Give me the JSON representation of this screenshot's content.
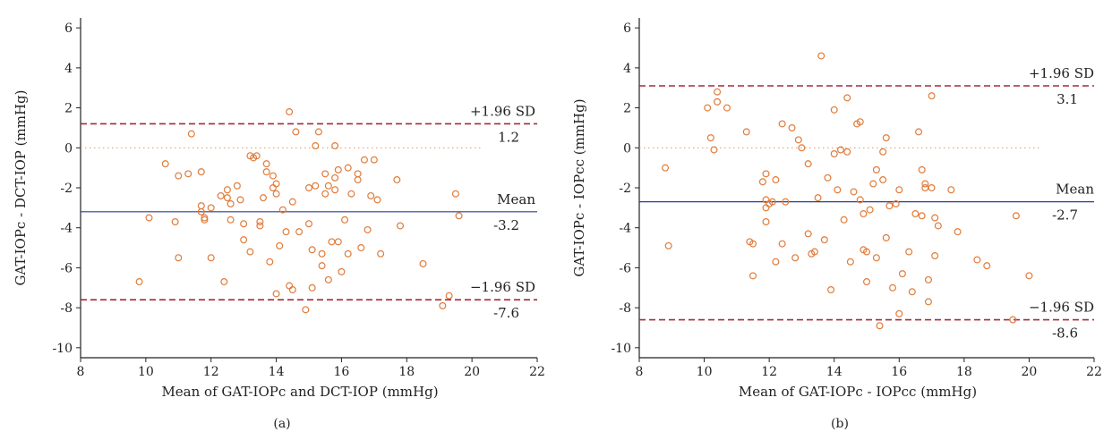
{
  "colors": {
    "points": "#e07b39",
    "mean_line": "#2a3d9c",
    "sd_lines": "#a52a3a",
    "zero_line": "#e8a070",
    "axis": "#222222"
  },
  "chart_data": [
    {
      "type": "scatter",
      "panel_label": "(a)",
      "xlabel": "Mean of GAT-IOPc and DCT-IOP (mmHg)",
      "ylabel": "GAT-IOPc - DCT-IOP (mmHg)",
      "xlim": [
        8,
        22
      ],
      "ylim": [
        -10.5,
        6.5
      ],
      "xticks": [
        8,
        10,
        12,
        14,
        16,
        18,
        20,
        22
      ],
      "yticks": [
        -10,
        -8,
        -6,
        -4,
        -2,
        0,
        2,
        4,
        6
      ],
      "grid": false,
      "zero_line": 0,
      "reference_lines": [
        {
          "name": "upper",
          "value": 1.2,
          "label": "+1.96 SD",
          "value_label": "1.2"
        },
        {
          "name": "mean",
          "value": -3.2,
          "label": "Mean",
          "value_label": "-3.2"
        },
        {
          "name": "lower",
          "value": -7.6,
          "label": "−1.96 SD",
          "value_label": "-7.6"
        }
      ],
      "points": [
        [
          9.8,
          -6.7
        ],
        [
          10.1,
          -3.5
        ],
        [
          10.6,
          -0.8
        ],
        [
          10.9,
          -3.7
        ],
        [
          11.0,
          -1.4
        ],
        [
          11.0,
          -5.5
        ],
        [
          11.3,
          -1.3
        ],
        [
          11.4,
          0.7
        ],
        [
          11.7,
          -1.2
        ],
        [
          11.7,
          -2.9
        ],
        [
          11.7,
          -3.2
        ],
        [
          11.8,
          -3.5
        ],
        [
          11.8,
          -3.6
        ],
        [
          12.0,
          -5.5
        ],
        [
          12.0,
          -3.0
        ],
        [
          12.3,
          -2.4
        ],
        [
          12.4,
          -6.7
        ],
        [
          12.5,
          -2.1
        ],
        [
          12.5,
          -2.5
        ],
        [
          12.6,
          -3.6
        ],
        [
          12.8,
          -1.9
        ],
        [
          12.9,
          -2.6
        ],
        [
          13.0,
          -4.6
        ],
        [
          13.0,
          -3.8
        ],
        [
          13.2,
          -5.2
        ],
        [
          13.2,
          -0.4
        ],
        [
          13.3,
          -0.5
        ],
        [
          13.4,
          -0.4
        ],
        [
          13.5,
          -3.7
        ],
        [
          13.5,
          -3.9
        ],
        [
          13.6,
          -2.5
        ],
        [
          13.7,
          -0.8
        ],
        [
          13.7,
          -1.2
        ],
        [
          13.8,
          -5.7
        ],
        [
          13.9,
          -2.0
        ],
        [
          13.9,
          -1.4
        ],
        [
          14.0,
          -2.3
        ],
        [
          14.0,
          -1.8
        ],
        [
          14.0,
          -7.3
        ],
        [
          14.1,
          -4.9
        ],
        [
          14.2,
          -3.1
        ],
        [
          14.3,
          -4.2
        ],
        [
          14.4,
          1.8
        ],
        [
          14.4,
          -6.9
        ],
        [
          14.5,
          -7.1
        ],
        [
          14.5,
          -2.7
        ],
        [
          14.6,
          0.8
        ],
        [
          14.7,
          -4.2
        ],
        [
          14.9,
          -8.1
        ],
        [
          15.0,
          -3.8
        ],
        [
          15.0,
          -2.0
        ],
        [
          15.1,
          -7.0
        ],
        [
          15.1,
          -5.1
        ],
        [
          15.2,
          0.1
        ],
        [
          15.2,
          -1.9
        ],
        [
          15.3,
          0.8
        ],
        [
          15.4,
          -5.3
        ],
        [
          15.4,
          -5.9
        ],
        [
          15.5,
          -1.3
        ],
        [
          15.5,
          -2.3
        ],
        [
          15.6,
          -1.9
        ],
        [
          15.6,
          -6.6
        ],
        [
          15.7,
          -4.7
        ],
        [
          15.8,
          0.1
        ],
        [
          15.8,
          -1.5
        ],
        [
          15.8,
          -2.1
        ],
        [
          15.9,
          -1.1
        ],
        [
          15.9,
          -4.7
        ],
        [
          16.0,
          -6.2
        ],
        [
          16.1,
          -3.6
        ],
        [
          16.2,
          -5.3
        ],
        [
          16.2,
          -1.0
        ],
        [
          16.3,
          -2.3
        ],
        [
          16.5,
          -1.3
        ],
        [
          16.5,
          -1.6
        ],
        [
          16.6,
          -5.0
        ],
        [
          16.7,
          -0.6
        ],
        [
          16.8,
          -4.1
        ],
        [
          16.9,
          -2.4
        ],
        [
          17.0,
          -0.6
        ],
        [
          17.1,
          -2.6
        ],
        [
          17.2,
          -5.3
        ],
        [
          17.7,
          -1.6
        ],
        [
          17.8,
          -3.9
        ],
        [
          18.5,
          -5.8
        ],
        [
          19.1,
          -7.9
        ],
        [
          19.3,
          -7.4
        ],
        [
          19.5,
          -2.3
        ],
        [
          19.6,
          -3.4
        ],
        [
          12.6,
          -2.8
        ]
      ]
    },
    {
      "type": "scatter",
      "panel_label": "(b)",
      "xlabel": "Mean of GAT-IOPc - IOPcc (mmHg)",
      "ylabel": "GAT-IOPc - IOPcc (mmHg)",
      "xlim": [
        8,
        22
      ],
      "ylim": [
        -10.5,
        6.5
      ],
      "xticks": [
        8,
        10,
        12,
        14,
        16,
        18,
        20,
        22
      ],
      "yticks": [
        -10,
        -8,
        -6,
        -4,
        -2,
        0,
        2,
        4,
        6
      ],
      "grid": false,
      "zero_line": 0,
      "reference_lines": [
        {
          "name": "upper",
          "value": 3.1,
          "label": "+1.96 SD",
          "value_label": "3.1"
        },
        {
          "name": "mean",
          "value": -2.7,
          "label": "Mean",
          "value_label": "-2.7"
        },
        {
          "name": "lower",
          "value": -8.6,
          "label": "−1.96 SD",
          "value_label": "-8.6"
        }
      ],
      "points": [
        [
          8.8,
          -1.0
        ],
        [
          8.9,
          -4.9
        ],
        [
          10.1,
          2.0
        ],
        [
          10.2,
          0.5
        ],
        [
          10.3,
          -0.1
        ],
        [
          10.4,
          2.8
        ],
        [
          10.4,
          2.3
        ],
        [
          10.7,
          2.0
        ],
        [
          11.3,
          0.8
        ],
        [
          11.4,
          -4.7
        ],
        [
          11.5,
          -4.8
        ],
        [
          11.5,
          -6.4
        ],
        [
          11.8,
          -1.7
        ],
        [
          11.9,
          -1.3
        ],
        [
          11.9,
          -3.0
        ],
        [
          11.9,
          -3.7
        ],
        [
          11.9,
          -2.6
        ],
        [
          12.0,
          -2.8
        ],
        [
          12.1,
          -2.7
        ],
        [
          12.2,
          -5.7
        ],
        [
          12.2,
          -1.6
        ],
        [
          12.4,
          1.2
        ],
        [
          12.4,
          -4.8
        ],
        [
          12.5,
          -2.7
        ],
        [
          12.7,
          1.0
        ],
        [
          12.8,
          -5.5
        ],
        [
          12.9,
          0.4
        ],
        [
          13.0,
          0.0
        ],
        [
          13.2,
          -4.3
        ],
        [
          13.2,
          -0.8
        ],
        [
          13.3,
          -5.3
        ],
        [
          13.4,
          -5.2
        ],
        [
          13.5,
          -2.5
        ],
        [
          13.6,
          4.6
        ],
        [
          13.7,
          -4.6
        ],
        [
          13.8,
          -1.5
        ],
        [
          13.9,
          -7.1
        ],
        [
          14.0,
          1.9
        ],
        [
          14.0,
          -0.3
        ],
        [
          14.1,
          -2.1
        ],
        [
          14.2,
          -0.1
        ],
        [
          14.3,
          -3.6
        ],
        [
          14.4,
          -0.2
        ],
        [
          14.4,
          2.5
        ],
        [
          14.5,
          -5.7
        ],
        [
          14.6,
          -2.2
        ],
        [
          14.7,
          1.2
        ],
        [
          14.8,
          1.3
        ],
        [
          14.8,
          -2.6
        ],
        [
          14.9,
          -3.3
        ],
        [
          14.9,
          -5.1
        ],
        [
          15.0,
          -5.2
        ],
        [
          15.0,
          -6.7
        ],
        [
          15.1,
          -3.1
        ],
        [
          15.2,
          -1.8
        ],
        [
          15.3,
          -1.1
        ],
        [
          15.3,
          -5.5
        ],
        [
          15.4,
          -8.9
        ],
        [
          15.5,
          -1.6
        ],
        [
          15.5,
          -0.2
        ],
        [
          15.6,
          0.5
        ],
        [
          15.6,
          -4.5
        ],
        [
          15.7,
          -2.9
        ],
        [
          15.8,
          -7.0
        ],
        [
          15.9,
          -2.8
        ],
        [
          16.0,
          -2.1
        ],
        [
          16.0,
          -8.3
        ],
        [
          16.1,
          -6.3
        ],
        [
          16.3,
          -5.2
        ],
        [
          16.4,
          -7.2
        ],
        [
          16.5,
          -3.3
        ],
        [
          16.6,
          0.8
        ],
        [
          16.7,
          -1.1
        ],
        [
          16.7,
          -3.4
        ],
        [
          16.8,
          -1.8
        ],
        [
          16.8,
          -2.0
        ],
        [
          16.9,
          -6.6
        ],
        [
          16.9,
          -7.7
        ],
        [
          17.0,
          -2.0
        ],
        [
          17.0,
          2.6
        ],
        [
          17.1,
          -5.4
        ],
        [
          17.2,
          -3.9
        ],
        [
          17.6,
          -2.1
        ],
        [
          17.8,
          -4.2
        ],
        [
          18.4,
          -5.6
        ],
        [
          18.7,
          -5.9
        ],
        [
          19.5,
          -8.6
        ],
        [
          19.6,
          -3.4
        ],
        [
          20.0,
          -6.4
        ],
        [
          17.1,
          -3.5
        ]
      ]
    }
  ]
}
